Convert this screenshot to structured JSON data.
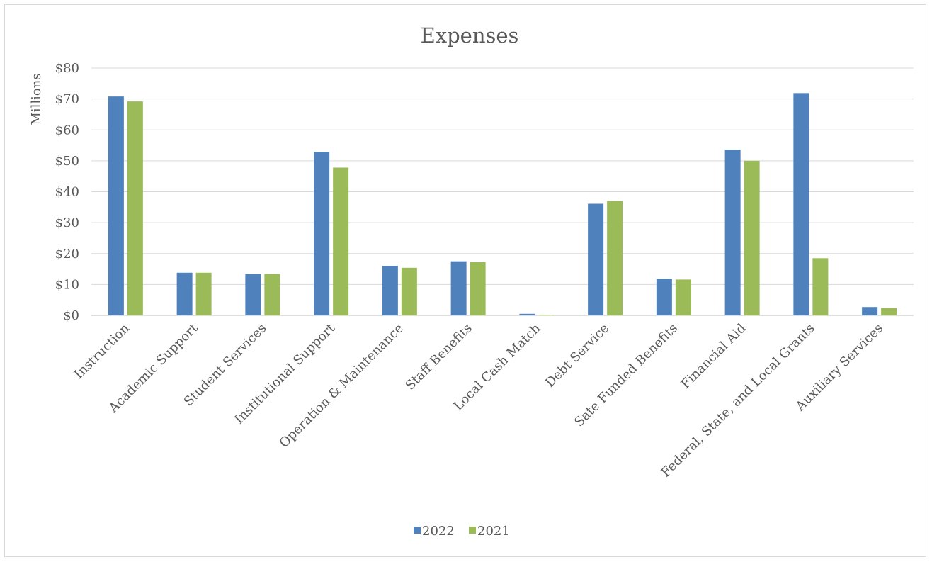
{
  "chart_data": {
    "type": "bar",
    "title": "Expenses",
    "ylabel": "Millions",
    "xlabel": "",
    "ylim": [
      0,
      80
    ],
    "yticks": [
      0,
      10,
      20,
      30,
      40,
      50,
      60,
      70,
      80
    ],
    "ytick_labels": [
      "$0",
      "$10",
      "$20",
      "$30",
      "$40",
      "$50",
      "$60",
      "$70",
      "$80"
    ],
    "grid": true,
    "legend": "bottom",
    "categories": [
      "Instruction",
      "Academic Support",
      "Student Services",
      "Institutional Support",
      "Operation & Maintenance",
      "Staff Benefits",
      "Local Cash Match",
      "Debt Service",
      "Sate Funded Benefits",
      "Financial Aid",
      "Federal, State, and Local Grants",
      "Auxiliary Services"
    ],
    "series": [
      {
        "name": "2022",
        "color": "#4f81bd",
        "values": [
          70.8,
          13.8,
          13.4,
          52.9,
          16.0,
          17.5,
          0.5,
          36.1,
          11.9,
          53.6,
          71.9,
          2.7
        ]
      },
      {
        "name": "2021",
        "color": "#9bbb59",
        "values": [
          69.2,
          13.8,
          13.4,
          47.8,
          15.4,
          17.2,
          0.2,
          37.0,
          11.6,
          50.0,
          18.5,
          2.4
        ]
      }
    ]
  }
}
